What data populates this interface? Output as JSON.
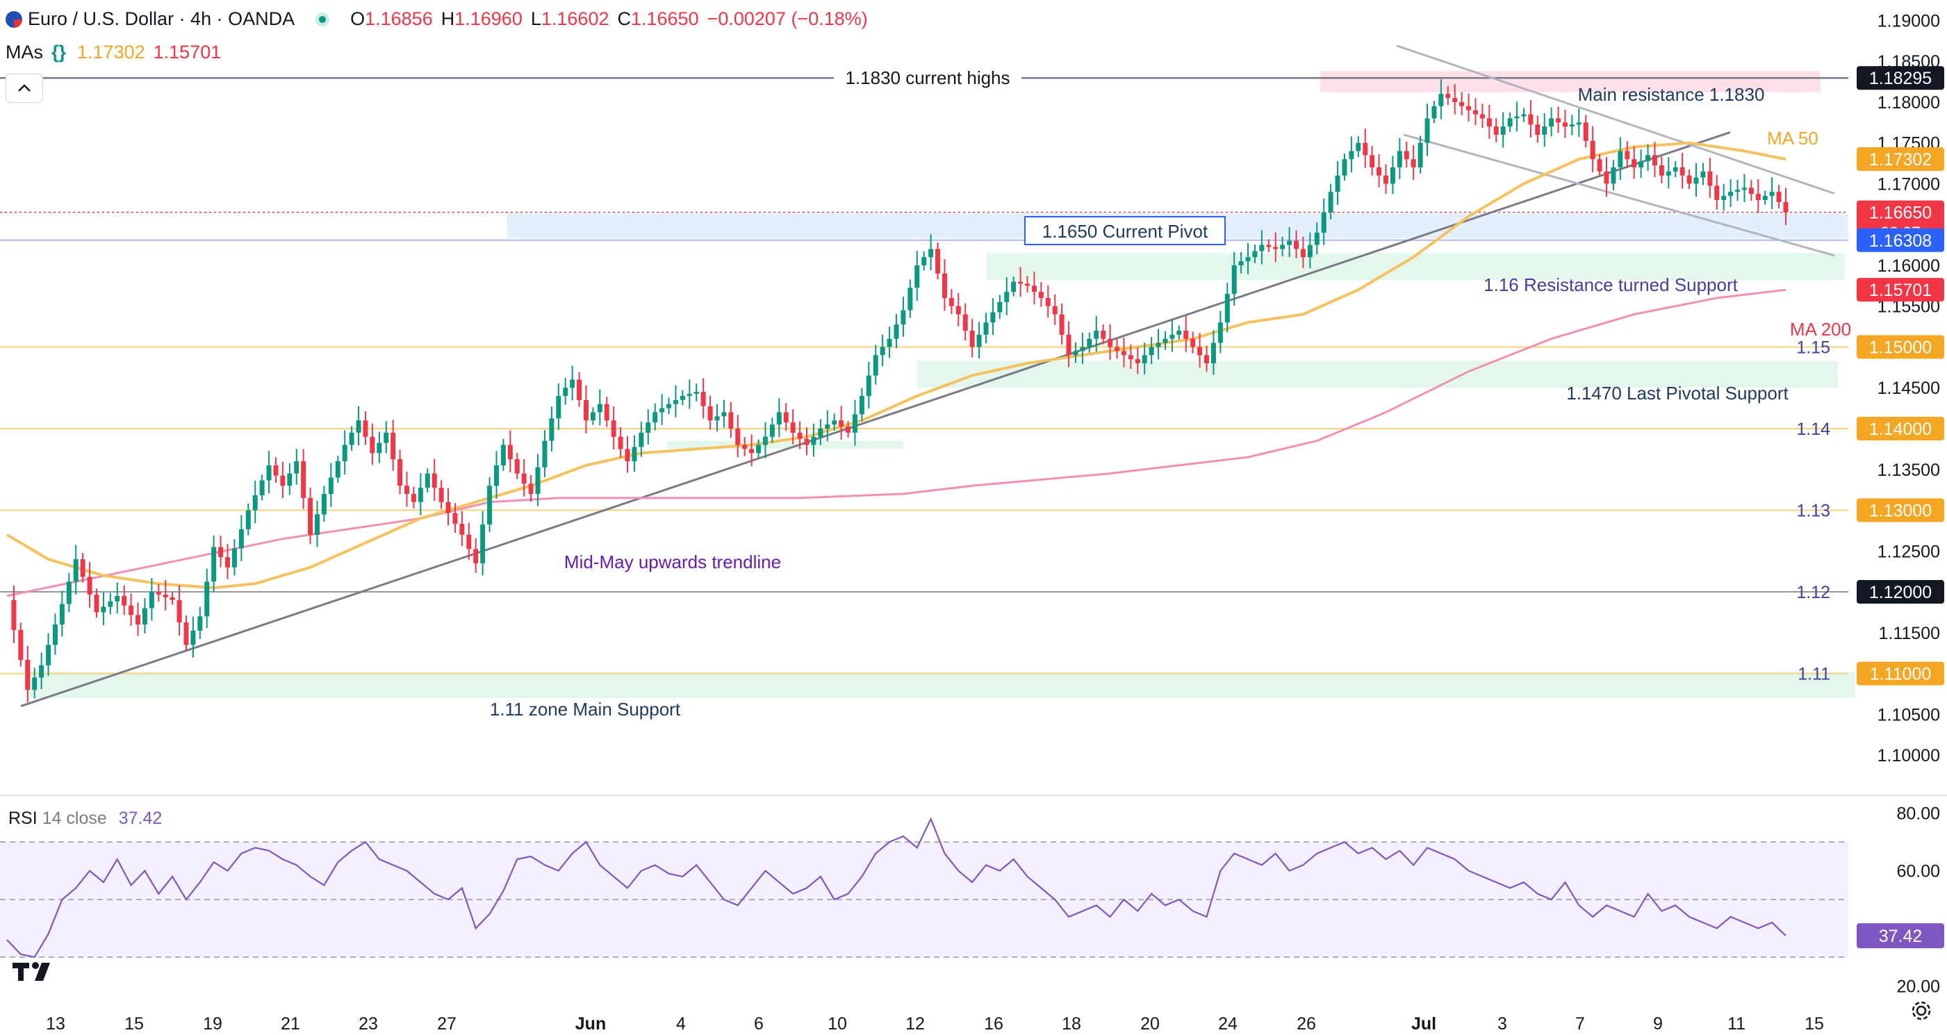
{
  "header": {
    "symbol": "Euro / U.S. Dollar · 4h · OANDA",
    "o_label": "O",
    "o_value": "1.16856",
    "h_label": "H",
    "h_value": "1.16960",
    "l_label": "L",
    "l_value": "1.16602",
    "c_label": "C",
    "c_value": "1.16650",
    "change": "−0.00207 (−0.18%)",
    "mas_label": "MAs",
    "ma50_value": "1.17302",
    "ma200_value": "1.15701"
  },
  "rsi": {
    "label": "RSI",
    "params": "14 close",
    "value": "37.42",
    "value_tag": "37.42"
  },
  "colors": {
    "up": "#089981",
    "down": "#f23645",
    "ma50": "#f7c15c",
    "ma200": "#f48fb1",
    "trendline": "#787b86",
    "rsi": "#7e57c2",
    "support_zone": "#e3f7ed",
    "resistance_zone": "#fde0e8",
    "pivot_zone": "#e3f0fb"
  },
  "chart_data": {
    "type": "candlestick",
    "title": "Euro / U.S. Dollar · 4h · OANDA",
    "ylim": [
      1.0955,
      1.1925
    ],
    "price_ticks": [
      "1.10000",
      "1.10500",
      "1.11500",
      "1.12500",
      "1.13500",
      "1.14500",
      "1.15500",
      "1.16000",
      "1.17000",
      "1.17500",
      "1.18000",
      "1.18500",
      "1.19000"
    ],
    "x_ticks": [
      "13",
      "15",
      "19",
      "21",
      "23",
      "27",
      "Jun",
      "4",
      "6",
      "10",
      "12",
      "16",
      "18",
      "20",
      "24",
      "26",
      "Jul",
      "3",
      "7",
      "9",
      "11",
      "15"
    ],
    "price_tags": [
      {
        "text": "1.18295",
        "value": 1.18295,
        "color": "#131722"
      },
      {
        "text": "1.17302",
        "value": 1.17302,
        "color": "#f5a623"
      },
      {
        "text": "1.16650",
        "sub": "02:27",
        "value": 1.1665,
        "color": "#f23645"
      },
      {
        "text": "1.16308",
        "value": 1.16308,
        "color": "#2962ff"
      },
      {
        "text": "1.15701",
        "value": 1.15701,
        "color": "#f23645"
      },
      {
        "text": "1.15000",
        "value": 1.15,
        "color": "#f5a623"
      },
      {
        "text": "1.14000",
        "value": 1.14,
        "color": "#f5a623"
      },
      {
        "text": "1.13000",
        "value": 1.13,
        "color": "#f5a623"
      },
      {
        "text": "1.12000",
        "value": 1.12,
        "color": "#131722"
      },
      {
        "text": "1.11000",
        "value": 1.11,
        "color": "#f5a623"
      }
    ],
    "level_labels": [
      {
        "text": "1.15",
        "value": 1.15
      },
      {
        "text": "1.14",
        "value": 1.14
      },
      {
        "text": "1.13",
        "value": 1.13
      },
      {
        "text": "1.12",
        "value": 1.12
      },
      {
        "text": "1.11",
        "value": 1.11
      }
    ],
    "annotations": [
      {
        "text": "1.1830 current highs"
      },
      {
        "text": "Main resistance 1.1830"
      },
      {
        "text": "MA 50"
      },
      {
        "text": "1.1650 Current Pivot"
      },
      {
        "text": "1.16 Resistance turned Support"
      },
      {
        "text": "MA 200"
      },
      {
        "text": "1.1470 Last Pivotal Support"
      },
      {
        "text": "Mid-May upwards trendline"
      },
      {
        "text": "1.11 zone Main Support"
      }
    ],
    "rsi": {
      "ylim": [
        15,
        85
      ],
      "ticks": [
        "80.00",
        "60.00",
        "20.00"
      ],
      "bands": [
        70,
        50,
        30
      ],
      "last": 37.42
    },
    "price_path": [
      [
        0,
        1.119
      ],
      [
        3,
        1.108
      ],
      [
        5,
        1.111
      ],
      [
        8,
        1.1185
      ],
      [
        10,
        1.124
      ],
      [
        13,
        1.1175
      ],
      [
        16,
        1.1195
      ],
      [
        19,
        1.116
      ],
      [
        21,
        1.12
      ],
      [
        24,
        1.119
      ],
      [
        26,
        1.1135
      ],
      [
        28,
        1.117
      ],
      [
        30,
        1.1255
      ],
      [
        32,
        1.123
      ],
      [
        35,
        1.13
      ],
      [
        38,
        1.1355
      ],
      [
        40,
        1.133
      ],
      [
        42,
        1.136
      ],
      [
        44,
        1.127
      ],
      [
        46,
        1.132
      ],
      [
        49,
        1.138
      ],
      [
        51,
        1.141
      ],
      [
        53,
        1.137
      ],
      [
        55,
        1.1395
      ],
      [
        57,
        1.133
      ],
      [
        59,
        1.131
      ],
      [
        61,
        1.1345
      ],
      [
        63,
        1.131
      ],
      [
        66,
        1.127
      ],
      [
        68,
        1.1235
      ],
      [
        70,
        1.133
      ],
      [
        72,
        1.138
      ],
      [
        74,
        1.1345
      ],
      [
        76,
        1.132
      ],
      [
        78,
        1.1385
      ],
      [
        80,
        1.144
      ],
      [
        82,
        1.146
      ],
      [
        84,
        1.141
      ],
      [
        86,
        1.143
      ],
      [
        88,
        1.139
      ],
      [
        90,
        1.136
      ],
      [
        92,
        1.1395
      ],
      [
        94,
        1.142
      ],
      [
        96,
        1.143
      ],
      [
        98,
        1.144
      ],
      [
        100,
        1.1445
      ],
      [
        102,
        1.141
      ],
      [
        104,
        1.142
      ],
      [
        106,
        1.138
      ],
      [
        108,
        1.137
      ],
      [
        110,
        1.139
      ],
      [
        112,
        1.142
      ],
      [
        114,
        1.1395
      ],
      [
        116,
        1.138
      ],
      [
        118,
        1.14
      ],
      [
        120,
        1.141
      ],
      [
        122,
        1.1395
      ],
      [
        124,
        1.144
      ],
      [
        126,
        1.149
      ],
      [
        128,
        1.151
      ],
      [
        130,
        1.1545
      ],
      [
        132,
        1.16
      ],
      [
        134,
        1.162
      ],
      [
        136,
        1.156
      ],
      [
        138,
        1.154
      ],
      [
        140,
        1.15
      ],
      [
        142,
        1.153
      ],
      [
        144,
        1.1555
      ],
      [
        146,
        1.158
      ],
      [
        148,
        1.1575
      ],
      [
        150,
        1.156
      ],
      [
        152,
        1.154
      ],
      [
        154,
        1.149
      ],
      [
        156,
        1.15
      ],
      [
        158,
        1.152
      ],
      [
        160,
        1.15
      ],
      [
        162,
        1.149
      ],
      [
        164,
        1.148
      ],
      [
        166,
        1.15
      ],
      [
        168,
        1.151
      ],
      [
        170,
        1.152
      ],
      [
        172,
        1.15
      ],
      [
        174,
        1.148
      ],
      [
        176,
        1.153
      ],
      [
        178,
        1.16
      ],
      [
        180,
        1.161
      ],
      [
        182,
        1.1625
      ],
      [
        184,
        1.162
      ],
      [
        186,
        1.163
      ],
      [
        188,
        1.161
      ],
      [
        190,
        1.164
      ],
      [
        192,
        1.169
      ],
      [
        194,
        1.173
      ],
      [
        196,
        1.175
      ],
      [
        198,
        1.172
      ],
      [
        200,
        1.17
      ],
      [
        202,
        1.174
      ],
      [
        204,
        1.172
      ],
      [
        206,
        1.178
      ],
      [
        208,
        1.181
      ],
      [
        210,
        1.18
      ],
      [
        212,
        1.179
      ],
      [
        214,
        1.178
      ],
      [
        216,
        1.176
      ],
      [
        218,
        1.178
      ],
      [
        220,
        1.1785
      ],
      [
        222,
        1.176
      ],
      [
        224,
        1.178
      ],
      [
        226,
        1.177
      ],
      [
        228,
        1.1775
      ],
      [
        230,
        1.173
      ],
      [
        232,
        1.17
      ],
      [
        234,
        1.174
      ],
      [
        236,
        1.172
      ],
      [
        238,
        1.1735
      ],
      [
        240,
        1.171
      ],
      [
        242,
        1.172
      ],
      [
        244,
        1.17
      ],
      [
        246,
        1.1715
      ],
      [
        248,
        1.168
      ],
      [
        250,
        1.169
      ],
      [
        252,
        1.1695
      ],
      [
        254,
        1.168
      ],
      [
        256,
        1.169
      ],
      [
        258,
        1.1665
      ]
    ],
    "ma50_path": [
      [
        0,
        1.127
      ],
      [
        6,
        1.124
      ],
      [
        14,
        1.122
      ],
      [
        22,
        1.121
      ],
      [
        30,
        1.1205
      ],
      [
        36,
        1.121
      ],
      [
        44,
        1.123
      ],
      [
        52,
        1.126
      ],
      [
        60,
        1.129
      ],
      [
        68,
        1.131
      ],
      [
        76,
        1.133
      ],
      [
        84,
        1.1355
      ],
      [
        92,
        1.137
      ],
      [
        100,
        1.1375
      ],
      [
        108,
        1.138
      ],
      [
        116,
        1.139
      ],
      [
        124,
        1.141
      ],
      [
        132,
        1.144
      ],
      [
        140,
        1.1465
      ],
      [
        148,
        1.148
      ],
      [
        156,
        1.149
      ],
      [
        164,
        1.15
      ],
      [
        172,
        1.151
      ],
      [
        180,
        1.153
      ],
      [
        188,
        1.154
      ],
      [
        196,
        1.157
      ],
      [
        204,
        1.161
      ],
      [
        212,
        1.166
      ],
      [
        220,
        1.17
      ],
      [
        228,
        1.173
      ],
      [
        236,
        1.1745
      ],
      [
        244,
        1.175
      ],
      [
        252,
        1.174
      ],
      [
        258,
        1.173
      ]
    ],
    "ma200_path": [
      [
        0,
        1.1195
      ],
      [
        20,
        1.123
      ],
      [
        40,
        1.1265
      ],
      [
        60,
        1.129
      ],
      [
        70,
        1.131
      ],
      [
        80,
        1.1315
      ],
      [
        100,
        1.1315
      ],
      [
        115,
        1.1315
      ],
      [
        130,
        1.132
      ],
      [
        140,
        1.133
      ],
      [
        160,
        1.1345
      ],
      [
        180,
        1.1365
      ],
      [
        190,
        1.1385
      ],
      [
        200,
        1.142
      ],
      [
        212,
        1.147
      ],
      [
        224,
        1.151
      ],
      [
        236,
        1.154
      ],
      [
        248,
        1.156
      ],
      [
        258,
        1.157
      ]
    ],
    "rsi_path": [
      [
        0,
        36
      ],
      [
        2,
        31
      ],
      [
        4,
        30
      ],
      [
        6,
        38
      ],
      [
        8,
        50
      ],
      [
        10,
        54
      ],
      [
        12,
        60
      ],
      [
        14,
        56
      ],
      [
        16,
        64
      ],
      [
        18,
        55
      ],
      [
        20,
        60
      ],
      [
        22,
        52
      ],
      [
        24,
        58
      ],
      [
        26,
        50
      ],
      [
        28,
        56
      ],
      [
        30,
        63
      ],
      [
        32,
        60
      ],
      [
        34,
        66
      ],
      [
        36,
        68
      ],
      [
        38,
        67
      ],
      [
        40,
        64
      ],
      [
        42,
        62
      ],
      [
        44,
        58
      ],
      [
        46,
        55
      ],
      [
        48,
        63
      ],
      [
        50,
        67
      ],
      [
        52,
        70
      ],
      [
        54,
        64
      ],
      [
        56,
        62
      ],
      [
        58,
        60
      ],
      [
        60,
        56
      ],
      [
        62,
        52
      ],
      [
        64,
        50
      ],
      [
        66,
        54
      ],
      [
        68,
        40
      ],
      [
        70,
        45
      ],
      [
        72,
        53
      ],
      [
        74,
        64
      ],
      [
        76,
        65
      ],
      [
        78,
        62
      ],
      [
        80,
        60
      ],
      [
        82,
        66
      ],
      [
        84,
        70
      ],
      [
        86,
        62
      ],
      [
        88,
        58
      ],
      [
        90,
        54
      ],
      [
        92,
        60
      ],
      [
        94,
        62
      ],
      [
        96,
        59
      ],
      [
        98,
        58
      ],
      [
        100,
        62
      ],
      [
        102,
        56
      ],
      [
        104,
        50
      ],
      [
        106,
        48
      ],
      [
        108,
        54
      ],
      [
        110,
        60
      ],
      [
        112,
        56
      ],
      [
        114,
        52
      ],
      [
        116,
        54
      ],
      [
        118,
        58
      ],
      [
        120,
        50
      ],
      [
        122,
        52
      ],
      [
        124,
        58
      ],
      [
        126,
        66
      ],
      [
        128,
        70
      ],
      [
        130,
        72
      ],
      [
        132,
        68
      ],
      [
        134,
        78
      ],
      [
        136,
        66
      ],
      [
        138,
        60
      ],
      [
        140,
        56
      ],
      [
        142,
        62
      ],
      [
        144,
        60
      ],
      [
        146,
        64
      ],
      [
        148,
        58
      ],
      [
        150,
        54
      ],
      [
        152,
        50
      ],
      [
        154,
        44
      ],
      [
        156,
        46
      ],
      [
        158,
        48
      ],
      [
        160,
        44
      ],
      [
        162,
        50
      ],
      [
        164,
        46
      ],
      [
        166,
        52
      ],
      [
        168,
        48
      ],
      [
        170,
        50
      ],
      [
        172,
        46
      ],
      [
        174,
        44
      ],
      [
        176,
        60
      ],
      [
        178,
        66
      ],
      [
        180,
        64
      ],
      [
        182,
        62
      ],
      [
        184,
        66
      ],
      [
        186,
        60
      ],
      [
        188,
        62
      ],
      [
        190,
        66
      ],
      [
        192,
        68
      ],
      [
        194,
        70
      ],
      [
        196,
        66
      ],
      [
        198,
        68
      ],
      [
        200,
        64
      ],
      [
        202,
        67
      ],
      [
        204,
        62
      ],
      [
        206,
        68
      ],
      [
        208,
        66
      ],
      [
        210,
        64
      ],
      [
        212,
        60
      ],
      [
        214,
        58
      ],
      [
        216,
        56
      ],
      [
        218,
        54
      ],
      [
        220,
        56
      ],
      [
        222,
        52
      ],
      [
        224,
        50
      ],
      [
        226,
        56
      ],
      [
        228,
        48
      ],
      [
        230,
        44
      ],
      [
        232,
        48
      ],
      [
        234,
        46
      ],
      [
        236,
        44
      ],
      [
        238,
        52
      ],
      [
        240,
        46
      ],
      [
        242,
        48
      ],
      [
        244,
        44
      ],
      [
        246,
        42
      ],
      [
        248,
        40
      ],
      [
        250,
        44
      ],
      [
        252,
        42
      ],
      [
        254,
        40
      ],
      [
        256,
        42
      ],
      [
        258,
        37.42
      ]
    ]
  }
}
